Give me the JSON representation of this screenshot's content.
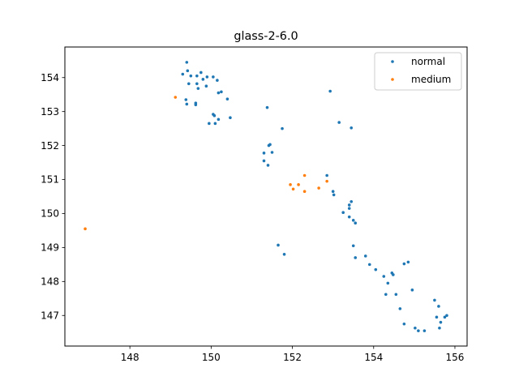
{
  "chart_data": {
    "type": "scatter",
    "title": "glass-2-6.0",
    "xlabel": "",
    "ylabel": "",
    "xlim": [
      146.4,
      156.3
    ],
    "ylim": [
      146.1,
      154.9
    ],
    "xticks": [
      148,
      150,
      152,
      154,
      156
    ],
    "yticks": [
      147,
      148,
      149,
      150,
      151,
      152,
      153,
      154
    ],
    "grid": false,
    "legend_position": "top-right",
    "series": [
      {
        "name": "normal",
        "color": "#1f77b4",
        "points": [
          [
            149.4,
            154.45
          ],
          [
            149.3,
            154.1
          ],
          [
            149.42,
            154.2
          ],
          [
            149.5,
            154.05
          ],
          [
            149.65,
            154.05
          ],
          [
            149.75,
            154.15
          ],
          [
            149.8,
            153.95
          ],
          [
            149.9,
            154.02
          ],
          [
            150.05,
            154.02
          ],
          [
            150.15,
            153.92
          ],
          [
            149.45,
            153.82
          ],
          [
            149.65,
            153.82
          ],
          [
            149.68,
            153.68
          ],
          [
            149.88,
            153.75
          ],
          [
            150.25,
            153.58
          ],
          [
            150.18,
            153.55
          ],
          [
            150.4,
            153.37
          ],
          [
            149.38,
            153.35
          ],
          [
            149.4,
            153.22
          ],
          [
            149.62,
            153.25
          ],
          [
            149.62,
            153.2
          ],
          [
            150.05,
            152.92
          ],
          [
            150.08,
            152.88
          ],
          [
            150.18,
            152.77
          ],
          [
            149.95,
            152.65
          ],
          [
            150.1,
            152.65
          ],
          [
            150.47,
            152.82
          ],
          [
            151.38,
            153.12
          ],
          [
            151.75,
            152.5
          ],
          [
            151.45,
            152.03
          ],
          [
            151.42,
            152.0
          ],
          [
            151.5,
            151.8
          ],
          [
            151.3,
            151.78
          ],
          [
            151.3,
            151.55
          ],
          [
            151.4,
            151.42
          ],
          [
            152.93,
            153.6
          ],
          [
            153.15,
            152.68
          ],
          [
            153.45,
            152.52
          ],
          [
            152.85,
            151.12
          ],
          [
            153.0,
            150.65
          ],
          [
            153.02,
            150.55
          ],
          [
            153.45,
            150.35
          ],
          [
            153.4,
            150.25
          ],
          [
            153.4,
            150.15
          ],
          [
            153.25,
            150.03
          ],
          [
            153.5,
            149.8
          ],
          [
            153.4,
            149.9
          ],
          [
            153.55,
            149.72
          ],
          [
            153.5,
            149.05
          ],
          [
            153.55,
            148.7
          ],
          [
            153.8,
            148.75
          ],
          [
            153.9,
            148.5
          ],
          [
            154.05,
            148.35
          ],
          [
            154.25,
            148.15
          ],
          [
            154.45,
            148.25
          ],
          [
            154.48,
            148.2
          ],
          [
            154.35,
            147.95
          ],
          [
            154.75,
            148.52
          ],
          [
            154.85,
            148.57
          ],
          [
            154.95,
            147.75
          ],
          [
            154.3,
            147.62
          ],
          [
            154.55,
            147.62
          ],
          [
            154.65,
            147.2
          ],
          [
            154.75,
            146.75
          ],
          [
            155.02,
            146.63
          ],
          [
            155.1,
            146.55
          ],
          [
            155.25,
            146.55
          ],
          [
            155.5,
            147.45
          ],
          [
            155.6,
            147.27
          ],
          [
            155.55,
            146.95
          ],
          [
            155.75,
            146.95
          ],
          [
            155.8,
            147.0
          ],
          [
            155.65,
            146.8
          ],
          [
            155.62,
            146.63
          ],
          [
            151.65,
            149.07
          ],
          [
            151.8,
            148.8
          ]
        ]
      },
      {
        "name": "medium",
        "color": "#ff7f0e",
        "points": [
          [
            146.9,
            149.55
          ],
          [
            149.12,
            153.42
          ],
          [
            151.95,
            150.85
          ],
          [
            152.02,
            150.72
          ],
          [
            152.15,
            150.85
          ],
          [
            152.3,
            150.65
          ],
          [
            152.3,
            151.12
          ],
          [
            152.65,
            150.75
          ],
          [
            152.85,
            150.95
          ]
        ]
      }
    ]
  }
}
